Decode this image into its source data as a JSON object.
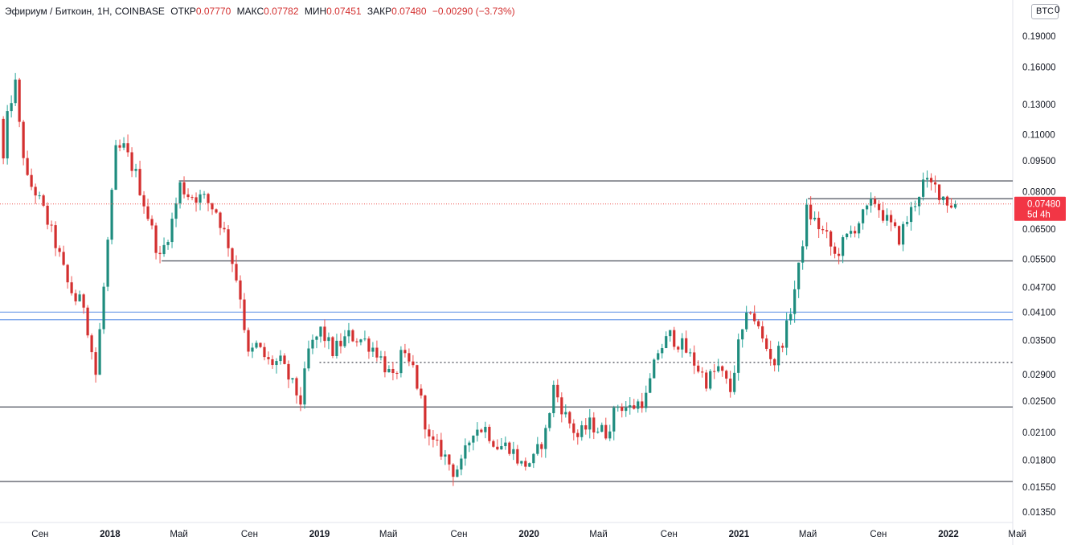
{
  "header": {
    "symbol": "Эфириум / Биткоин, 1H, COINBASE",
    "open_label": "ОТКР",
    "open": "0.07770",
    "high_label": "МАКС",
    "high": "0.07782",
    "low_label": "МИН",
    "low": "0.07451",
    "close_label": "ЗАКР",
    "close": "0.07480",
    "change": "−0.00290 (−3.73%)"
  },
  "price_scale": {
    "currency": "BTC",
    "top_tick": "0",
    "current_price": "0.07480",
    "countdown": "5d 4h"
  },
  "colors": {
    "up": "#26a69a",
    "down": "#ef5350",
    "up_body": "#1e8c7e",
    "down_body": "#d32f2f",
    "level_line": "#5d606b",
    "blue_line": "#6f9de8",
    "price_line": "#ef5350"
  },
  "chart_data": {
    "type": "candlestick",
    "title": "",
    "scale": "log",
    "ylim": [
      0.0125,
      0.22
    ],
    "y_ticks": [
      "0.19000",
      "0.16000",
      "0.13000",
      "0.11000",
      "0.09500",
      "0.08000",
      "0.06500",
      "0.05500",
      "0.04700",
      "0.04100",
      "0.03500",
      "0.02900",
      "0.02500",
      "0.02100",
      "0.01800",
      "0.01550",
      "0.01350"
    ],
    "x_ticks": [
      "Сен",
      "2018",
      "Май",
      "Сен",
      "2019",
      "Май",
      "Сен",
      "2020",
      "Май",
      "Сен",
      "2021",
      "Май",
      "Сен",
      "2022",
      "Май"
    ],
    "x_tick_dates": [
      "2017-09",
      "2018-01",
      "2018-05",
      "2018-09",
      "2019-01",
      "2019-05",
      "2019-09",
      "2020-01",
      "2020-05",
      "2020-09",
      "2021-01",
      "2021-05",
      "2021-09",
      "2022-01",
      "2022-05"
    ],
    "horizontal_levels": [
      {
        "price": 0.085,
        "style": "solid",
        "color": "gray",
        "from": "2018-05"
      },
      {
        "price": 0.077,
        "style": "solid",
        "color": "gray",
        "from": "2021-05"
      },
      {
        "price": 0.0545,
        "style": "solid",
        "color": "gray",
        "from": "2018-04"
      },
      {
        "price": 0.041,
        "style": "solid",
        "color": "blue",
        "from": "start"
      },
      {
        "price": 0.0393,
        "style": "solid",
        "color": "blue",
        "from": "start"
      },
      {
        "price": 0.031,
        "style": "dotted",
        "color": "dark",
        "from": "2019-01"
      },
      {
        "price": 0.0242,
        "style": "solid",
        "color": "gray",
        "from": "start"
      },
      {
        "price": 0.016,
        "style": "solid",
        "color": "gray",
        "from": "start"
      }
    ],
    "current_price": 0.0748,
    "anchors": [
      {
        "date": "2017-06-26",
        "price": 0.12
      },
      {
        "date": "2017-07-03",
        "price": 0.095
      },
      {
        "date": "2017-07-10",
        "price": 0.12
      },
      {
        "date": "2017-07-17",
        "price": 0.135
      },
      {
        "date": "2017-07-24",
        "price": 0.145
      },
      {
        "date": "2017-07-31",
        "price": 0.115
      },
      {
        "date": "2017-08-14",
        "price": 0.085
      },
      {
        "date": "2017-08-28",
        "price": 0.08
      },
      {
        "date": "2017-09-11",
        "price": 0.072
      },
      {
        "date": "2017-10-02",
        "price": 0.06
      },
      {
        "date": "2017-10-23",
        "price": 0.048
      },
      {
        "date": "2017-11-06",
        "price": 0.044
      },
      {
        "date": "2017-11-20",
        "price": 0.043
      },
      {
        "date": "2017-12-11",
        "price": 0.029
      },
      {
        "date": "2017-12-25",
        "price": 0.047
      },
      {
        "date": "2018-01-15",
        "price": 0.1
      },
      {
        "date": "2018-01-29",
        "price": 0.102
      },
      {
        "date": "2018-02-19",
        "price": 0.088
      },
      {
        "date": "2018-03-12",
        "price": 0.07
      },
      {
        "date": "2018-04-02",
        "price": 0.055
      },
      {
        "date": "2018-04-23",
        "price": 0.068
      },
      {
        "date": "2018-05-07",
        "price": 0.083
      },
      {
        "date": "2018-05-21",
        "price": 0.079
      },
      {
        "date": "2018-06-18",
        "price": 0.077
      },
      {
        "date": "2018-07-09",
        "price": 0.072
      },
      {
        "date": "2018-07-30",
        "price": 0.06
      },
      {
        "date": "2018-08-20",
        "price": 0.045
      },
      {
        "date": "2018-09-03",
        "price": 0.032
      },
      {
        "date": "2018-09-17",
        "price": 0.034
      },
      {
        "date": "2018-10-08",
        "price": 0.031
      },
      {
        "date": "2018-10-29",
        "price": 0.031
      },
      {
        "date": "2018-12-03",
        "price": 0.025
      },
      {
        "date": "2018-12-17",
        "price": 0.033
      },
      {
        "date": "2019-01-07",
        "price": 0.037
      },
      {
        "date": "2019-01-28",
        "price": 0.033
      },
      {
        "date": "2019-02-25",
        "price": 0.036
      },
      {
        "date": "2019-03-25",
        "price": 0.035
      },
      {
        "date": "2019-04-15",
        "price": 0.033
      },
      {
        "date": "2019-05-13",
        "price": 0.028
      },
      {
        "date": "2019-05-27",
        "price": 0.032
      },
      {
        "date": "2019-06-17",
        "price": 0.03
      },
      {
        "date": "2019-07-01",
        "price": 0.025
      },
      {
        "date": "2019-07-15",
        "price": 0.02
      },
      {
        "date": "2019-08-05",
        "price": 0.019
      },
      {
        "date": "2019-08-26",
        "price": 0.017
      },
      {
        "date": "2019-09-09",
        "price": 0.0175
      },
      {
        "date": "2019-09-30",
        "price": 0.0215
      },
      {
        "date": "2019-10-21",
        "price": 0.0215
      },
      {
        "date": "2019-11-11",
        "price": 0.0195
      },
      {
        "date": "2019-12-02",
        "price": 0.0195
      },
      {
        "date": "2019-12-23",
        "price": 0.0175
      },
      {
        "date": "2020-01-13",
        "price": 0.018
      },
      {
        "date": "2020-02-03",
        "price": 0.021
      },
      {
        "date": "2020-02-17",
        "price": 0.027
      },
      {
        "date": "2020-03-09",
        "price": 0.023
      },
      {
        "date": "2020-03-30",
        "price": 0.0205
      },
      {
        "date": "2020-04-20",
        "price": 0.022
      },
      {
        "date": "2020-05-18",
        "price": 0.021
      },
      {
        "date": "2020-06-08",
        "price": 0.0245
      },
      {
        "date": "2020-06-29",
        "price": 0.024
      },
      {
        "date": "2020-07-27",
        "price": 0.0255
      },
      {
        "date": "2020-08-17",
        "price": 0.033
      },
      {
        "date": "2020-09-07",
        "price": 0.036
      },
      {
        "date": "2020-09-28",
        "price": 0.034
      },
      {
        "date": "2020-10-19",
        "price": 0.031
      },
      {
        "date": "2020-11-09",
        "price": 0.028
      },
      {
        "date": "2020-11-30",
        "price": 0.03
      },
      {
        "date": "2020-12-21",
        "price": 0.0265
      },
      {
        "date": "2021-01-04",
        "price": 0.034
      },
      {
        "date": "2021-01-25",
        "price": 0.042
      },
      {
        "date": "2021-02-15",
        "price": 0.035
      },
      {
        "date": "2021-03-08",
        "price": 0.031
      },
      {
        "date": "2021-03-29",
        "price": 0.0375
      },
      {
        "date": "2021-04-19",
        "price": 0.052
      },
      {
        "date": "2021-05-03",
        "price": 0.072
      },
      {
        "date": "2021-05-17",
        "price": 0.068
      },
      {
        "date": "2021-06-07",
        "price": 0.062
      },
      {
        "date": "2021-06-21",
        "price": 0.056
      },
      {
        "date": "2021-07-12",
        "price": 0.062
      },
      {
        "date": "2021-08-02",
        "price": 0.068
      },
      {
        "date": "2021-08-30",
        "price": 0.076
      },
      {
        "date": "2021-09-20",
        "price": 0.068
      },
      {
        "date": "2021-10-11",
        "price": 0.062
      },
      {
        "date": "2021-11-01",
        "price": 0.072
      },
      {
        "date": "2021-11-22",
        "price": 0.084
      },
      {
        "date": "2021-12-13",
        "price": 0.082
      },
      {
        "date": "2022-01-03",
        "price": 0.076
      },
      {
        "date": "2022-01-10",
        "price": 0.0748
      }
    ]
  }
}
